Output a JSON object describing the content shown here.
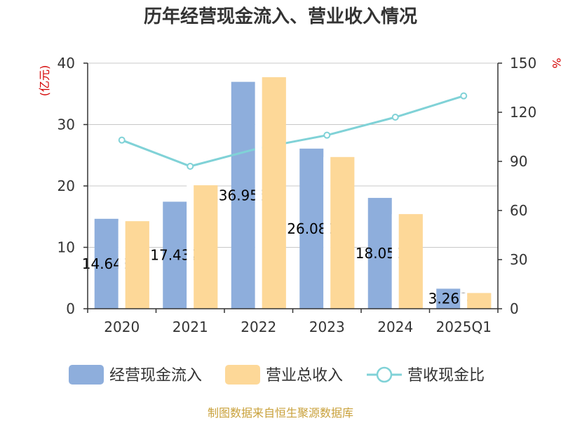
{
  "chart_data": {
    "type": "bar",
    "title": "历年经营现金流入、营业收入情况",
    "categories": [
      "2020",
      "2021",
      "2022",
      "2023",
      "2024",
      "2025Q1"
    ],
    "y_left": {
      "unit": "(亿元)",
      "ylim": [
        0,
        40
      ],
      "ticks": [
        "0",
        "10",
        "20",
        "30",
        "40"
      ]
    },
    "y_right": {
      "unit": "%",
      "ylim": [
        0,
        150
      ],
      "ticks": [
        "0",
        "30",
        "60",
        "90",
        "120",
        "150"
      ]
    },
    "series": [
      {
        "name": "经营现金流入",
        "type": "bar",
        "axis": "left",
        "color": "#8eaedc",
        "values": [
          14.648,
          17.432,
          36.955,
          26.08,
          18.05,
          3.263
        ],
        "labels": [
          "14.648",
          "17.432",
          "36.955",
          "26.080",
          "18.050",
          "3.263"
        ]
      },
      {
        "name": "营业总收入",
        "type": "bar",
        "axis": "left",
        "color": "#fdd898",
        "values": [
          14.25,
          20.1,
          37.7,
          24.7,
          15.4,
          2.55
        ]
      },
      {
        "name": "营收现金比",
        "type": "line",
        "axis": "right",
        "color": "#80d2d7",
        "values": [
          103,
          87,
          98,
          106,
          117,
          130
        ]
      }
    ],
    "grid": true,
    "legend_position": "bottom",
    "source": "制图数据来自恒生聚源数据库"
  }
}
